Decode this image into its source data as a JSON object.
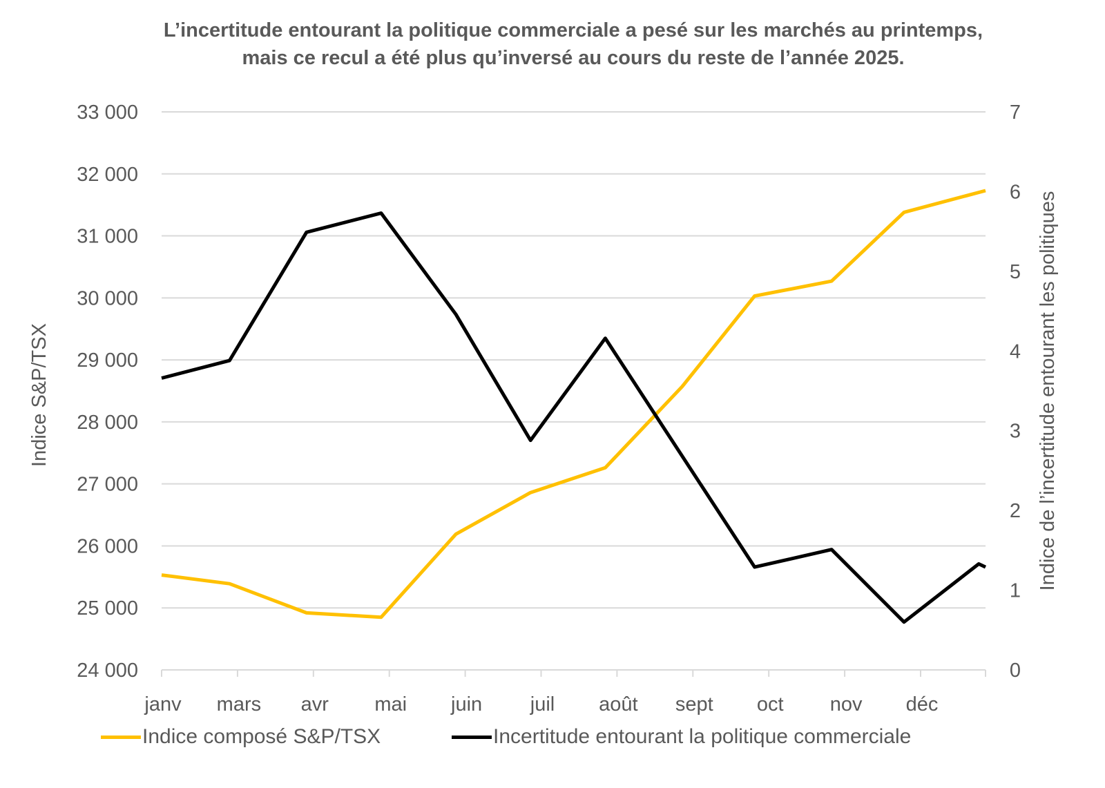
{
  "chart_data": {
    "type": "line",
    "title": "L’incertitude entourant la politique commerciale a pesé sur les marchés au printemps, mais ce recul a été plus qu’inversé au cours du reste de l’année 2025.",
    "xlabel": "",
    "ylabel": "Indice S&P/TSX",
    "y2label": "Indice de l’incertitude entourant les politiques",
    "xlim": [
      "2025-01-01",
      "2025-12-31"
    ],
    "ylim": [
      24000,
      33000
    ],
    "y2lim": [
      0,
      7
    ],
    "x_tick_labels": [
      "janv",
      "mars",
      "avr",
      "mai",
      "juin",
      "juil",
      "août",
      "sept",
      "oct",
      "nov",
      "déc"
    ],
    "y_tick_labels": [
      "24 000",
      "25 000",
      "26 000",
      "27 000",
      "28 000",
      "29 000",
      "30 000",
      "31 000",
      "32 000",
      "33 000"
    ],
    "y2_tick_labels": [
      "0",
      "1",
      "2",
      "3",
      "4",
      "5",
      "6",
      "7"
    ],
    "grid": true,
    "legend": "bottom",
    "series": [
      {
        "name": "Indice composé S&P/TSX",
        "axis": "left",
        "color": "#FFC000",
        "x": [
          "2025-01-01",
          "2025-01-31",
          "2025-03-06",
          "2025-04-08",
          "2025-05-11",
          "2025-06-13",
          "2025-07-16",
          "2025-08-19",
          "2025-09-20",
          "2025-10-24",
          "2025-11-25",
          "2025-12-31"
        ],
        "values": [
          25530,
          25390,
          24920,
          24850,
          26190,
          26860,
          27260,
          28570,
          30030,
          30270,
          31380,
          31730
        ]
      },
      {
        "name": "Incertitude entourant la politique commerciale",
        "axis": "right",
        "color": "#000000",
        "x": [
          "2025-01-01",
          "2025-01-31",
          "2025-03-06",
          "2025-04-08",
          "2025-05-11",
          "2025-06-13",
          "2025-07-16",
          "2025-09-20",
          "2025-10-24",
          "2025-11-25",
          "2025-12-28",
          "2025-12-31"
        ],
        "values": [
          3.66,
          3.88,
          5.49,
          5.73,
          4.46,
          2.88,
          4.16,
          1.29,
          1.51,
          0.6,
          1.33,
          1.29
        ]
      }
    ]
  }
}
